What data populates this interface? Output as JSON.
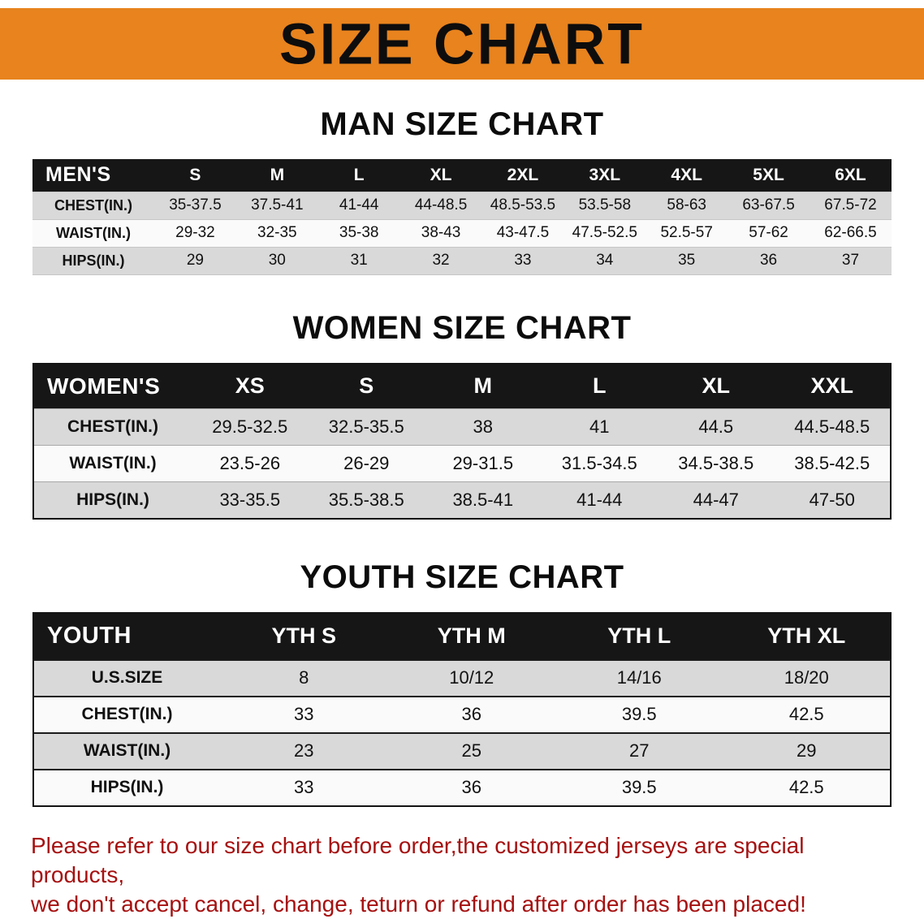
{
  "banner": {
    "title": "SIZE CHART"
  },
  "colors": {
    "banner_bg": "#E8831E",
    "table_header_bg": "#161616",
    "row_shade": "#D9D9D9",
    "note_red": "#A61010"
  },
  "men": {
    "heading": "MAN SIZE CHART",
    "table": {
      "header": [
        "MEN'S",
        "S",
        "M",
        "L",
        "XL",
        "2XL",
        "3XL",
        "4XL",
        "5XL",
        "6XL"
      ],
      "rows": [
        [
          "CHEST(IN.)",
          "35-37.5",
          "37.5-41",
          "41-44",
          "44-48.5",
          "48.5-53.5",
          "53.5-58",
          "58-63",
          "63-67.5",
          "67.5-72"
        ],
        [
          "WAIST(IN.)",
          "29-32",
          "32-35",
          "35-38",
          "38-43",
          "43-47.5",
          "47.5-52.5",
          "52.5-57",
          "57-62",
          "62-66.5"
        ],
        [
          "HIPS(IN.)",
          "29",
          "30",
          "31",
          "32",
          "33",
          "34",
          "35",
          "36",
          "37"
        ]
      ]
    }
  },
  "women": {
    "heading": "WOMEN SIZE CHART",
    "table": {
      "header": [
        "WOMEN'S",
        "XS",
        "S",
        "M",
        "L",
        "XL",
        "XXL"
      ],
      "rows": [
        [
          "CHEST(IN.)",
          "29.5-32.5",
          "32.5-35.5",
          "38",
          "41",
          "44.5",
          "44.5-48.5"
        ],
        [
          "WAIST(IN.)",
          "23.5-26",
          "26-29",
          "29-31.5",
          "31.5-34.5",
          "34.5-38.5",
          "38.5-42.5"
        ],
        [
          "HIPS(IN.)",
          "33-35.5",
          "35.5-38.5",
          "38.5-41",
          "41-44",
          "44-47",
          "47-50"
        ]
      ]
    }
  },
  "youth": {
    "heading": "YOUTH SIZE CHART",
    "table": {
      "header": [
        "YOUTH",
        "YTH S",
        "YTH M",
        "YTH L",
        "YTH XL"
      ],
      "rows": [
        [
          "U.S.SIZE",
          "8",
          "10/12",
          "14/16",
          "18/20"
        ],
        [
          "CHEST(IN.)",
          "33",
          "36",
          "39.5",
          "42.5"
        ],
        [
          "WAIST(IN.)",
          "23",
          "25",
          "27",
          "29"
        ],
        [
          "HIPS(IN.)",
          "33",
          "36",
          "39.5",
          "42.5"
        ]
      ]
    }
  },
  "note": {
    "line1": "Please refer to our size chart before order,the customized jerseys are special products,",
    "line2": "we don't accept cancel, change, teturn or refund after order has been placed!"
  }
}
